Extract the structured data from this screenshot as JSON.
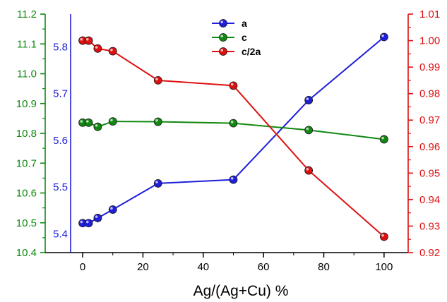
{
  "chart_data": {
    "type": "line",
    "xlabel": "Ag/(Ag+Cu) %",
    "x": [
      0,
      2,
      5,
      10,
      25,
      50,
      75,
      100
    ],
    "xlim": [
      -4,
      108
    ],
    "xticks": [
      0,
      20,
      40,
      60,
      80,
      100
    ],
    "xtick_labels": [
      "0",
      "20",
      "40",
      "60",
      "80",
      "100"
    ],
    "axes": [
      {
        "id": "a",
        "side": "inner-left",
        "color": "#1f1fdb",
        "range": [
          5.36,
          5.87
        ],
        "ticks": [
          5.4,
          5.5,
          5.6,
          5.7,
          5.8
        ],
        "tick_labels": [
          "5.4",
          "5.5",
          "5.6",
          "5.7",
          "5.8"
        ]
      },
      {
        "id": "c",
        "side": "outer-left",
        "color": "#118811",
        "range": [
          10.4,
          11.2
        ],
        "ticks": [
          10.4,
          10.5,
          10.6,
          10.7,
          10.8,
          10.9,
          11.0,
          11.1,
          11.2
        ],
        "tick_labels": [
          "10.4",
          "10.5",
          "10.6",
          "10.7",
          "10.8",
          "10.9",
          "11.0",
          "11.1",
          "11.2"
        ]
      },
      {
        "id": "c2a",
        "side": "right",
        "color": "#dd1111",
        "range": [
          0.92,
          1.01
        ],
        "ticks": [
          0.92,
          0.93,
          0.94,
          0.95,
          0.96,
          0.97,
          0.98,
          0.99,
          1.0,
          1.01
        ],
        "tick_labels": [
          "0.92",
          "0.93",
          "0.94",
          "0.95",
          "0.96",
          "0.97",
          "0.98",
          "0.99",
          "1.00",
          "1.01"
        ]
      }
    ],
    "series": [
      {
        "name": "a",
        "axis": "a",
        "color": "#1f1fdb",
        "values": [
          5.423,
          5.423,
          5.434,
          5.452,
          5.508,
          5.516,
          5.686,
          5.821
        ]
      },
      {
        "name": "c",
        "axis": "c",
        "color": "#118811",
        "values": [
          10.836,
          10.836,
          10.822,
          10.84,
          10.839,
          10.834,
          10.811,
          10.78
        ]
      },
      {
        "name": "c/2a",
        "axis": "c2a",
        "color": "#dd1111",
        "values": [
          1.0,
          1.0,
          0.997,
          0.996,
          0.985,
          0.983,
          0.951,
          0.926
        ]
      }
    ],
    "legend": {
      "placement": "top-center",
      "entries": [
        "a",
        "c",
        "c/2a"
      ]
    },
    "grid": false
  }
}
